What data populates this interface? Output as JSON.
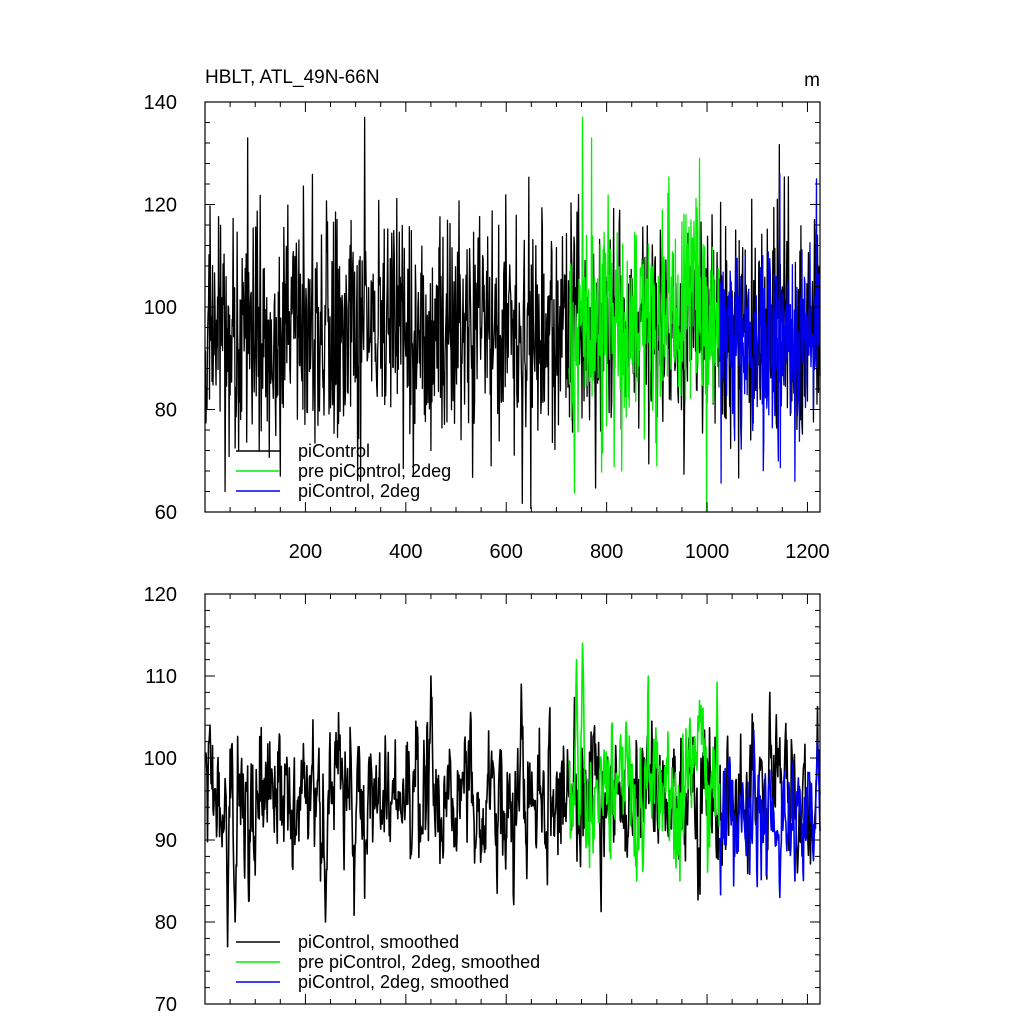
{
  "chart_data": [
    {
      "type": "line",
      "title_left": "HBLT, ATL_49N-66N",
      "title_right": "m",
      "xlabel": "",
      "ylabel": "",
      "xlim": [
        0,
        1225
      ],
      "ylim": [
        60,
        140
      ],
      "x_ticks": [
        200,
        400,
        600,
        800,
        1000,
        1200
      ],
      "y_ticks": [
        60,
        80,
        100,
        120,
        140
      ],
      "grid": false,
      "legend_position": "bottom-left",
      "series": [
        {
          "name": "piControl",
          "color": "#000000",
          "x_range": [
            1,
            1225
          ],
          "mean": 95,
          "amplitude": 11,
          "peaks": [
            {
              "x": 85,
              "y": 133
            },
            {
              "x": 318,
              "y": 137
            },
            {
              "x": 1010,
              "y": 118
            },
            {
              "x": 40,
              "y": 64
            },
            {
              "x": 150,
              "y": 67
            },
            {
              "x": 310,
              "y": 66
            },
            {
              "x": 450,
              "y": 72
            }
          ]
        },
        {
          "name": "pre piControl, 2deg",
          "color": "#00ee00",
          "x_range": [
            725,
            1025
          ],
          "mean": 98,
          "amplitude": 11,
          "peaks": [
            {
              "x": 752,
              "y": 137
            },
            {
              "x": 770,
              "y": 133
            },
            {
              "x": 985,
              "y": 129
            },
            {
              "x": 830,
              "y": 68
            },
            {
              "x": 900,
              "y": 69
            }
          ]
        },
        {
          "name": "piControl, 2deg",
          "color": "#0000ee",
          "x_range": [
            1025,
            1225
          ],
          "mean": 93,
          "amplitude": 10,
          "peaks": [
            {
              "x": 1145,
              "y": 126
            },
            {
              "x": 1218,
              "y": 125
            },
            {
              "x": 1175,
              "y": 66
            }
          ]
        }
      ]
    },
    {
      "type": "line",
      "title_left": "",
      "title_right": "",
      "xlabel": "",
      "ylabel": "",
      "xlim": [
        0,
        1225
      ],
      "ylim": [
        70,
        120
      ],
      "x_ticks": [
        200,
        400,
        600,
        800,
        1000,
        1200
      ],
      "y_ticks": [
        70,
        80,
        90,
        100,
        110,
        120
      ],
      "grid": false,
      "legend_position": "bottom-left",
      "series": [
        {
          "name": "piControl, smoothed",
          "color": "#000000",
          "x_range": [
            1,
            1225
          ],
          "mean": 95,
          "amplitude": 4,
          "peaks": [
            {
              "x": 10,
              "y": 104
            },
            {
              "x": 45,
              "y": 77
            },
            {
              "x": 60,
              "y": 80
            },
            {
              "x": 240,
              "y": 80
            },
            {
              "x": 450,
              "y": 110
            },
            {
              "x": 630,
              "y": 109
            },
            {
              "x": 1125,
              "y": 108
            },
            {
              "x": 1180,
              "y": 86
            }
          ]
        },
        {
          "name": "pre piControl, 2deg, smoothed",
          "color": "#00ee00",
          "x_range": [
            725,
            1025
          ],
          "mean": 96,
          "amplitude": 4,
          "peaks": [
            {
              "x": 752,
              "y": 114
            },
            {
              "x": 740,
              "y": 112
            },
            {
              "x": 860,
              "y": 85
            },
            {
              "x": 985,
              "y": 107
            }
          ]
        },
        {
          "name": "piControl, 2deg, smoothed",
          "color": "#0000ee",
          "x_range": [
            1025,
            1225
          ],
          "mean": 92,
          "amplitude": 3.5,
          "peaks": [
            {
              "x": 1145,
              "y": 83
            },
            {
              "x": 1175,
              "y": 85
            },
            {
              "x": 1220,
              "y": 102
            }
          ]
        }
      ]
    }
  ]
}
